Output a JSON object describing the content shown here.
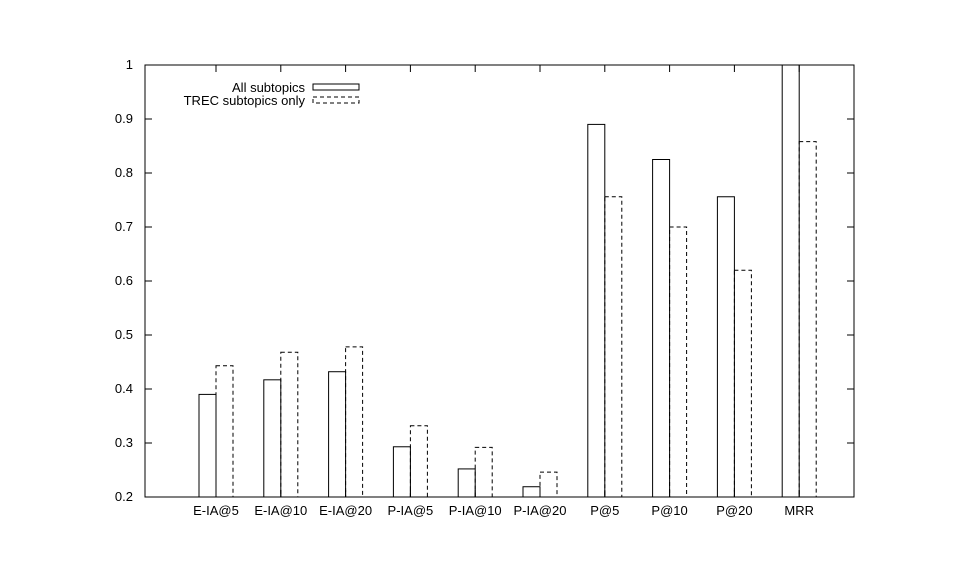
{
  "chart_data": {
    "type": "bar",
    "title": "",
    "xlabel": "",
    "ylabel": "",
    "ylim": [
      0.2,
      1.0
    ],
    "yticks": [
      "0.2",
      "0.3",
      "0.4",
      "0.5",
      "0.6",
      "0.7",
      "0.8",
      "0.9",
      "1"
    ],
    "grid": false,
    "legend_position": "top-left",
    "categories": [
      "E-IA@5",
      "E-IA@10",
      "E-IA@20",
      "P-IA@5",
      "P-IA@10",
      "P-IA@20",
      "P@5",
      "P@10",
      "P@20",
      "MRR"
    ],
    "series": [
      {
        "name": "All subtopics",
        "line_style": "solid",
        "values": [
          0.39,
          0.417,
          0.432,
          0.293,
          0.252,
          0.219,
          0.89,
          0.825,
          0.756,
          1.0
        ]
      },
      {
        "name": "TREC subtopics only",
        "line_style": "dashed",
        "values": [
          0.443,
          0.468,
          0.478,
          0.332,
          0.292,
          0.246,
          0.756,
          0.7,
          0.62,
          0.858
        ]
      }
    ]
  }
}
